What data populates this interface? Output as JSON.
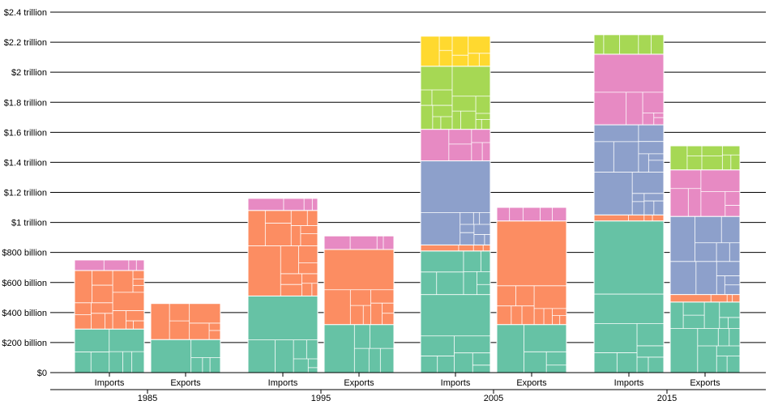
{
  "chart_data": {
    "type": "bar",
    "stacked": true,
    "subtype": "stacked treemap bars",
    "groups": [
      "1985",
      "1995",
      "2005",
      "2015"
    ],
    "categories": [
      "Imports",
      "Exports"
    ],
    "ylim": [
      0,
      2.4
    ],
    "y_unit": "trillion USD",
    "y_ticks": [
      {
        "value": 0,
        "label": "$0"
      },
      {
        "value": 0.2,
        "label": "$200 billion"
      },
      {
        "value": 0.4,
        "label": "$400 billion"
      },
      {
        "value": 0.6,
        "label": "$600 billion"
      },
      {
        "value": 0.8,
        "label": "$800 billion"
      },
      {
        "value": 1.0,
        "label": "$1 trillion"
      },
      {
        "value": 1.2,
        "label": "$1.2 trillion"
      },
      {
        "value": 1.4,
        "label": "$1.4 trillion"
      },
      {
        "value": 1.6,
        "label": "$1.6 trillion"
      },
      {
        "value": 1.8,
        "label": "$1.8 trillion"
      },
      {
        "value": 2.0,
        "label": "$2 trillion"
      },
      {
        "value": 2.2,
        "label": "$2.2 trillion"
      },
      {
        "value": 2.4,
        "label": "$2.4 trillion"
      }
    ],
    "grid": true,
    "colors": [
      "#66c2a5",
      "#fc8d62",
      "#8da0cb",
      "#e78ac3",
      "#a6d854",
      "#ffd92f"
    ],
    "bars": [
      {
        "group": "1985",
        "category": "Imports",
        "segments": [
          0.29,
          0.39,
          0,
          0.07
        ]
      },
      {
        "group": "1985",
        "category": "Exports",
        "segments": [
          0.22,
          0.24,
          0,
          0
        ]
      },
      {
        "group": "1995",
        "category": "Imports",
        "segments": [
          0.51,
          0.57,
          0,
          0.08
        ]
      },
      {
        "group": "1995",
        "category": "Exports",
        "segments": [
          0.32,
          0.5,
          0,
          0.09
        ]
      },
      {
        "group": "2005",
        "category": "Imports",
        "segments": [
          0.81,
          0.04,
          0.56,
          0.21,
          0.42,
          0.2
        ]
      },
      {
        "group": "2005",
        "category": "Exports",
        "segments": [
          0.32,
          0.69,
          0,
          0.09
        ]
      },
      {
        "group": "2015",
        "category": "Imports",
        "segments": [
          1.01,
          0.04,
          0.6,
          0.47,
          0.13
        ]
      },
      {
        "group": "2015",
        "category": "Exports",
        "segments": [
          0.47,
          0.05,
          0.52,
          0.31,
          0.16
        ]
      }
    ]
  }
}
